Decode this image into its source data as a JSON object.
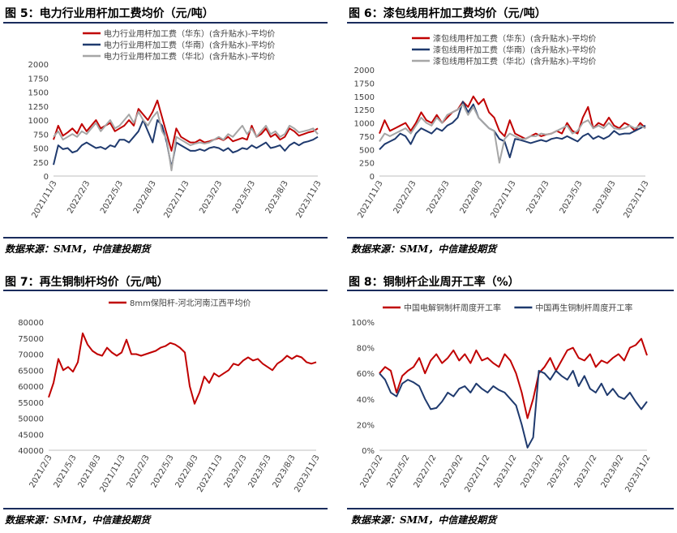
{
  "colors": {
    "red": "#c00000",
    "navy": "#1f3a6e",
    "gray": "#a6a6a6",
    "rule": "#1a2c5c"
  },
  "source_text": "数据来源：SMM，中信建投期货",
  "chart_data": [
    {
      "id": "fig5",
      "type": "line",
      "title": "图 5：电力行业用杆加工费均价（元/吨）",
      "ylim": [
        0,
        2000
      ],
      "yticks": [
        "2000",
        "1750",
        "1500",
        "1250",
        "1000",
        "750",
        "500",
        "250",
        "0"
      ],
      "xticks": [
        "2021/11/3",
        "2022/2/3",
        "2022/5/3",
        "2022/8/3",
        "2022/11/3",
        "2023/2/3",
        "2023/5/3",
        "2023/8/3",
        "2023/11/3"
      ],
      "series": [
        {
          "name": "电力行业用杆加工费（华东）(含升贴水)-平均价",
          "color": "red",
          "values": [
            650,
            900,
            720,
            780,
            850,
            760,
            930,
            800,
            900,
            1000,
            850,
            900,
            950,
            800,
            850,
            900,
            1000,
            900,
            1200,
            1100,
            1000,
            1150,
            1350,
            1050,
            750,
            450,
            850,
            700,
            650,
            600,
            600,
            650,
            600,
            620,
            650,
            680,
            640,
            700,
            620,
            650,
            680,
            650,
            900,
            700,
            750,
            850,
            700,
            750,
            650,
            700,
            850,
            800,
            720,
            750,
            780,
            800,
            850
          ]
        },
        {
          "name": "电力行业用杆加工费（华南）(含升贴水)-平均价",
          "color": "navy",
          "values": [
            200,
            550,
            480,
            500,
            420,
            450,
            550,
            600,
            550,
            500,
            520,
            480,
            550,
            520,
            650,
            650,
            600,
            700,
            800,
            1000,
            800,
            600,
            1000,
            900,
            600,
            150,
            600,
            550,
            500,
            450,
            450,
            480,
            450,
            500,
            520,
            500,
            450,
            500,
            420,
            450,
            500,
            480,
            550,
            500,
            550,
            600,
            500,
            520,
            550,
            450,
            550,
            600,
            550,
            600,
            620,
            650,
            700
          ]
        },
        {
          "name": "电力行业用杆加工费（华北）(含升贴水)-平均价",
          "color": "gray",
          "values": [
            700,
            800,
            650,
            700,
            750,
            700,
            800,
            750,
            850,
            950,
            800,
            900,
            1000,
            850,
            900,
            1000,
            1100,
            950,
            1150,
            1000,
            900,
            1050,
            1150,
            800,
            650,
            100,
            700,
            650,
            600,
            550,
            580,
            600,
            580,
            600,
            650,
            700,
            650,
            750,
            700,
            800,
            900,
            750,
            850,
            700,
            800,
            900,
            750,
            800,
            700,
            750,
            900,
            850,
            780,
            800,
            820,
            850,
            750
          ]
        }
      ]
    },
    {
      "id": "fig6",
      "type": "line",
      "title": "图 6：漆包线用杆加工费均价（元/吨）",
      "ylim": [
        0,
        2000
      ],
      "yticks": [
        "2000",
        "1750",
        "1500",
        "1250",
        "1000",
        "750",
        "500",
        "250",
        "0"
      ],
      "xticks": [
        "2021/11/3",
        "2022/2/3",
        "2022/5/3",
        "2022/8/3",
        "2022/11/3",
        "2023/2/3",
        "2023/5/3",
        "2023/8/3",
        "2023/11/3"
      ],
      "series": [
        {
          "name": "漆包线用杆加工费（华东）(含升贴水)-平均价",
          "color": "red",
          "values": [
            800,
            1050,
            850,
            900,
            950,
            1000,
            850,
            1000,
            1200,
            1050,
            1000,
            1150,
            1000,
            1100,
            1200,
            1250,
            1400,
            1300,
            1500,
            1350,
            1450,
            1200,
            1100,
            850,
            750,
            1050,
            800,
            750,
            700,
            750,
            800,
            750,
            780,
            800,
            850,
            800,
            1000,
            850,
            800,
            1100,
            1300,
            900,
            1000,
            950,
            1100,
            950,
            900,
            1000,
            950,
            850,
            1000,
            900
          ]
        },
        {
          "name": "漆包线用杆加工费（华南）(含升贴水)-平均价",
          "color": "navy",
          "values": [
            500,
            600,
            650,
            700,
            800,
            750,
            600,
            800,
            900,
            850,
            800,
            900,
            850,
            950,
            1000,
            1100,
            1400,
            1200,
            1350,
            1100,
            1000,
            900,
            850,
            700,
            650,
            350,
            700,
            680,
            650,
            620,
            650,
            680,
            650,
            700,
            720,
            700,
            750,
            700,
            650,
            750,
            800,
            700,
            750,
            700,
            750,
            850,
            780,
            800,
            800,
            850,
            900,
            950
          ]
        },
        {
          "name": "漆包线用杆加工费（华北）(含升贴水)-平均价",
          "color": "gray",
          "values": [
            650,
            800,
            750,
            800,
            850,
            900,
            800,
            950,
            1100,
            1000,
            950,
            1100,
            1000,
            1150,
            1200,
            1250,
            1350,
            1150,
            1300,
            1100,
            1000,
            900,
            850,
            250,
            700,
            800,
            750,
            700,
            700,
            750,
            750,
            800,
            780,
            800,
            850,
            900,
            950,
            800,
            850,
            1000,
            1050,
            900,
            950,
            900,
            1000,
            900,
            880,
            900,
            950,
            900,
            950,
            900
          ]
        }
      ]
    },
    {
      "id": "fig7",
      "type": "line",
      "title": "图 7：再生铜制杆均价（元/吨）",
      "ylim": [
        40000,
        80000
      ],
      "yticks": [
        "80000",
        "75000",
        "70000",
        "65000",
        "60000",
        "55000",
        "50000",
        "45000",
        "40000"
      ],
      "xticks": [
        "2021/2/3",
        "2021/5/3",
        "2021/8/3",
        "2021/11/3",
        "2022/2/3",
        "2022/5/3",
        "2022/8/3",
        "2022/11/3",
        "2023/2/3",
        "2023/5/3",
        "2023/8/3",
        "2023/11/3"
      ],
      "series": [
        {
          "name": "8mm保阳杆-河北河南江西平均价",
          "color": "red",
          "values": [
            56500,
            61000,
            68500,
            65000,
            66000,
            64500,
            67500,
            76500,
            73000,
            71000,
            70000,
            69500,
            72000,
            70500,
            69500,
            70500,
            74500,
            70000,
            70000,
            69500,
            70000,
            70500,
            71000,
            72000,
            72500,
            73500,
            73000,
            72000,
            70500,
            60000,
            54500,
            58000,
            63000,
            61000,
            64000,
            63000,
            64000,
            65000,
            67000,
            66500,
            68000,
            69000,
            68000,
            68500,
            67000,
            66000,
            65000,
            67000,
            68000,
            69500,
            68500,
            69500,
            69000,
            67500,
            67000,
            67500
          ]
        }
      ]
    },
    {
      "id": "fig8",
      "type": "line",
      "title": "图 8：铜制杆企业周开工率（%）",
      "ylim": [
        0,
        100
      ],
      "yticks": [
        "100%",
        "80%",
        "60%",
        "40%",
        "20%",
        "0%"
      ],
      "xticks": [
        "2022/3/2",
        "2022/5/2",
        "2022/7/2",
        "2022/9/2",
        "2022/11/2",
        "2023/1/2",
        "2023/3/2",
        "2023/5/2",
        "2023/7/2",
        "2023/9/2",
        "2023/11/2"
      ],
      "series": [
        {
          "name": "中国电解铜制杆周度开工率",
          "color": "red",
          "values": [
            60,
            65,
            62,
            45,
            58,
            62,
            65,
            72,
            60,
            70,
            75,
            68,
            72,
            78,
            70,
            75,
            68,
            78,
            70,
            72,
            68,
            65,
            75,
            70,
            60,
            45,
            25,
            40,
            60,
            65,
            72,
            62,
            70,
            78,
            80,
            72,
            70,
            75,
            65,
            70,
            68,
            72,
            75,
            70,
            80,
            82,
            87,
            74
          ]
        },
        {
          "name": "中国再生铜制杆周度开工率",
          "color": "navy",
          "values": [
            60,
            55,
            45,
            42,
            52,
            55,
            53,
            50,
            40,
            32,
            33,
            38,
            45,
            42,
            48,
            50,
            45,
            52,
            48,
            45,
            50,
            47,
            45,
            40,
            35,
            20,
            2,
            10,
            62,
            60,
            55,
            62,
            58,
            55,
            62,
            50,
            58,
            48,
            45,
            52,
            43,
            48,
            42,
            40,
            45,
            38,
            32,
            38
          ]
        }
      ]
    }
  ]
}
